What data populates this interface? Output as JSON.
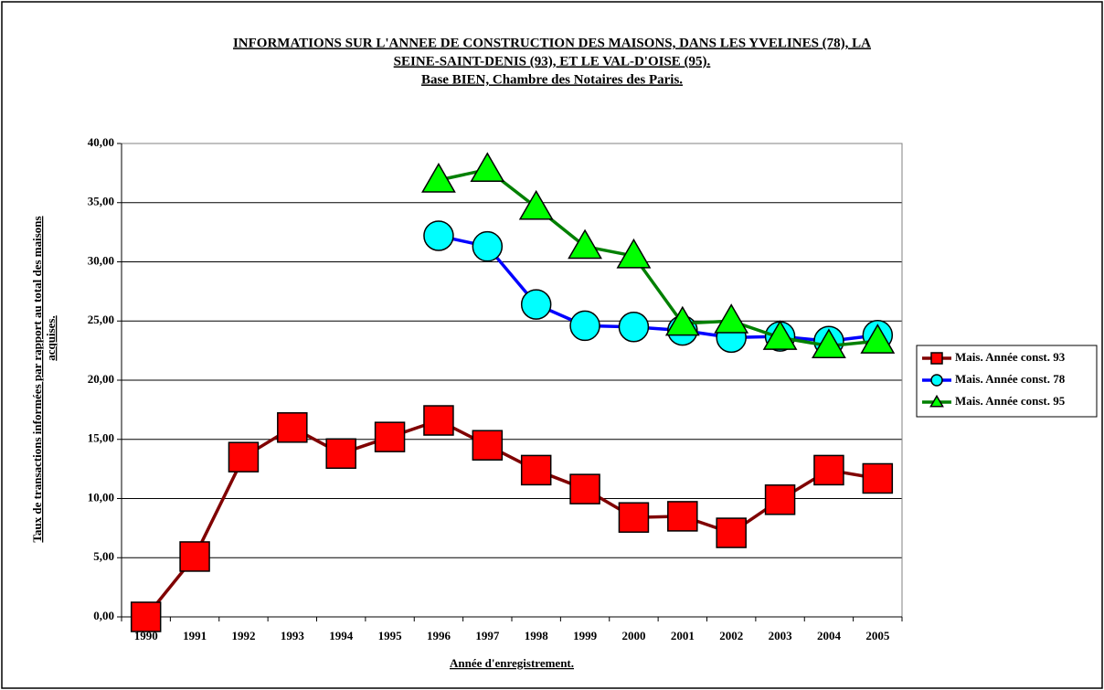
{
  "chart_data": {
    "type": "line",
    "title": [
      "INFORMATIONS SUR L'ANNEE DE CONSTRUCTION DES MAISONS, DANS LES YVELINES (78), LA",
      "SEINE-SAINT-DENIS (93), ET LE VAL-D'OISE (95).",
      "Base BIEN, Chambre des Notaires des Paris."
    ],
    "y_label": [
      "Taux de transactions informées par rapport au total des maisons",
      "acquises."
    ],
    "x_label": "Année d'enregistrement.",
    "categories": [
      "1990",
      "1991",
      "1992",
      "1993",
      "1994",
      "1995",
      "1996",
      "1997",
      "1998",
      "1999",
      "2000",
      "2001",
      "2002",
      "2003",
      "2004",
      "2005"
    ],
    "series": [
      {
        "name": "Mais. Année const. 93",
        "color": "#800000",
        "marker": "square",
        "marker_color": "#ff0000",
        "values": [
          0,
          5.1,
          13.5,
          16.0,
          13.8,
          15.2,
          16.6,
          14.5,
          12.4,
          10.8,
          8.4,
          8.5,
          7.1,
          9.9,
          12.4,
          11.7
        ]
      },
      {
        "name": "Mais. Année const. 78",
        "color": "#0000ff",
        "marker": "circle",
        "marker_color": "#00ffff",
        "values": [
          null,
          null,
          null,
          null,
          null,
          null,
          32.2,
          31.3,
          26.4,
          24.6,
          24.5,
          24.2,
          23.6,
          23.7,
          23.3,
          23.8
        ]
      },
      {
        "name": "Mais. Année const. 95",
        "color": "#008000",
        "marker": "triangle",
        "marker_color": "#00ff00",
        "values": [
          null,
          null,
          null,
          null,
          null,
          null,
          36.9,
          37.8,
          34.6,
          31.3,
          30.5,
          24.8,
          25.0,
          23.6,
          22.9,
          23.3
        ]
      }
    ],
    "ylim": [
      0,
      40
    ],
    "yticks": [
      {
        "value": 0,
        "label": "0,00"
      },
      {
        "value": 5,
        "label": "5,00"
      },
      {
        "value": 10,
        "label": "10,00"
      },
      {
        "value": 15,
        "label": "15,00"
      },
      {
        "value": 20,
        "label": "20,00"
      },
      {
        "value": 25,
        "label": "25,00"
      },
      {
        "value": 30,
        "label": "30,00"
      },
      {
        "value": 35,
        "label": "35,00"
      },
      {
        "value": 40,
        "label": "40,00"
      }
    ],
    "grid": true,
    "legend": "right"
  }
}
